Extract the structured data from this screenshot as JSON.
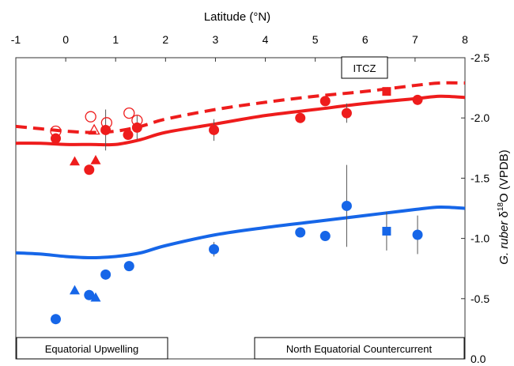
{
  "chart_data": {
    "type": "scatter",
    "xlabel": "Latitude (°N)",
    "ylabel_italic": "G. ruber",
    "ylabel_delta": " δ",
    "ylabel_sup": "18",
    "ylabel_rest": "O (VPDB)",
    "xlim": [
      -1,
      8
    ],
    "ylim": [
      -2.5,
      0.0
    ],
    "y_reversed": true,
    "x_ticks": [
      -1,
      0,
      1,
      2,
      3,
      4,
      5,
      6,
      7,
      8
    ],
    "y_ticks": [
      -2.5,
      -2.0,
      -1.5,
      -1.0,
      -0.5,
      0.0
    ],
    "x_tick_labels": [
      "-1",
      "0",
      "1",
      "2",
      "3",
      "4",
      "5",
      "6",
      "7",
      "8"
    ],
    "y_tick_labels": [
      "-2.5",
      "-2.0",
      "-1.5",
      "-1.0",
      "-0.5",
      "0.0"
    ],
    "annotations": {
      "itcz": "ITCZ",
      "upwelling": "Equatorial Upwelling",
      "countercurrent": "North Equatorial Countercurrent"
    },
    "colors": {
      "red": "#ee1c1c",
      "blue": "#1666e8"
    },
    "lines": [
      {
        "color": "red",
        "dashed": true,
        "x": [
          -1,
          -0.5,
          0,
          0.5,
          1,
          1.5,
          2,
          3,
          4,
          5,
          6,
          7,
          7.5,
          8
        ],
        "y": [
          -1.93,
          -1.91,
          -1.89,
          -1.88,
          -1.89,
          -1.93,
          -1.99,
          -2.07,
          -2.13,
          -2.18,
          -2.22,
          -2.27,
          -2.29,
          -2.29
        ]
      },
      {
        "color": "red",
        "dashed": false,
        "x": [
          -1,
          -0.5,
          0,
          0.5,
          1,
          1.5,
          2,
          3,
          4,
          5,
          6,
          7,
          7.5,
          8
        ],
        "y": [
          -1.79,
          -1.79,
          -1.78,
          -1.78,
          -1.78,
          -1.82,
          -1.88,
          -1.95,
          -2.02,
          -2.07,
          -2.12,
          -2.16,
          -2.18,
          -2.17
        ]
      },
      {
        "color": "blue",
        "dashed": false,
        "x": [
          -1,
          -0.5,
          0,
          0.5,
          1,
          1.5,
          2,
          3,
          4,
          5,
          6,
          7,
          7.5,
          8
        ],
        "y": [
          -0.88,
          -0.87,
          -0.85,
          -0.84,
          -0.85,
          -0.88,
          -0.94,
          -1.03,
          -1.09,
          -1.14,
          -1.19,
          -1.24,
          -1.26,
          -1.25
        ]
      }
    ],
    "points": [
      {
        "x": -0.2,
        "y": -1.83,
        "shape": "circle",
        "filled": true,
        "color": "red"
      },
      {
        "x": 0.47,
        "y": -1.57,
        "shape": "circle",
        "filled": true,
        "color": "red"
      },
      {
        "x": 0.8,
        "y": -1.9,
        "shape": "circle",
        "filled": true,
        "color": "red",
        "err": 0.17
      },
      {
        "x": 1.25,
        "y": -1.86,
        "shape": "circle",
        "filled": true,
        "color": "red"
      },
      {
        "x": 1.43,
        "y": -1.92,
        "shape": "circle",
        "filled": true,
        "color": "red",
        "err": 0.1
      },
      {
        "x": 2.97,
        "y": -1.9,
        "shape": "circle",
        "filled": true,
        "color": "red",
        "err": 0.09
      },
      {
        "x": 4.7,
        "y": -2.0,
        "shape": "circle",
        "filled": true,
        "color": "red"
      },
      {
        "x": 5.2,
        "y": -2.14,
        "shape": "circle",
        "filled": true,
        "color": "red"
      },
      {
        "x": 5.63,
        "y": -2.04,
        "shape": "circle",
        "filled": true,
        "color": "red",
        "err": 0.08
      },
      {
        "x": 7.05,
        "y": -2.15,
        "shape": "circle",
        "filled": true,
        "color": "red"
      },
      {
        "x": 6.43,
        "y": -2.22,
        "shape": "square",
        "filled": true,
        "color": "red"
      },
      {
        "x": 0.18,
        "y": -1.64,
        "shape": "triangle",
        "filled": true,
        "color": "red"
      },
      {
        "x": 0.6,
        "y": -1.65,
        "shape": "triangle",
        "filled": true,
        "color": "red"
      },
      {
        "x": 0.57,
        "y": -1.9,
        "shape": "triangle",
        "filled": false,
        "color": "red"
      },
      {
        "x": -0.2,
        "y": -1.89,
        "shape": "circle",
        "filled": false,
        "color": "red"
      },
      {
        "x": 0.5,
        "y": -2.01,
        "shape": "circle",
        "filled": false,
        "color": "red"
      },
      {
        "x": 0.82,
        "y": -1.96,
        "shape": "circle",
        "filled": false,
        "color": "red"
      },
      {
        "x": 1.27,
        "y": -2.04,
        "shape": "circle",
        "filled": false,
        "color": "red"
      },
      {
        "x": 1.43,
        "y": -1.98,
        "shape": "circle",
        "filled": false,
        "color": "red"
      },
      {
        "x": -0.2,
        "y": -0.33,
        "shape": "circle",
        "filled": true,
        "color": "blue"
      },
      {
        "x": 0.47,
        "y": -0.53,
        "shape": "circle",
        "filled": true,
        "color": "blue"
      },
      {
        "x": 0.8,
        "y": -0.7,
        "shape": "circle",
        "filled": true,
        "color": "blue"
      },
      {
        "x": 1.27,
        "y": -0.77,
        "shape": "circle",
        "filled": true,
        "color": "blue"
      },
      {
        "x": 2.97,
        "y": -0.91,
        "shape": "circle",
        "filled": true,
        "color": "blue",
        "err": 0.06
      },
      {
        "x": 4.7,
        "y": -1.05,
        "shape": "circle",
        "filled": true,
        "color": "blue"
      },
      {
        "x": 5.2,
        "y": -1.02,
        "shape": "circle",
        "filled": true,
        "color": "blue"
      },
      {
        "x": 5.63,
        "y": -1.27,
        "shape": "circle",
        "filled": true,
        "color": "blue",
        "err": 0.34
      },
      {
        "x": 7.05,
        "y": -1.03,
        "shape": "circle",
        "filled": true,
        "color": "blue",
        "err": 0.16
      },
      {
        "x": 6.43,
        "y": -1.06,
        "shape": "square",
        "filled": true,
        "color": "blue",
        "err": 0.16
      },
      {
        "x": 0.18,
        "y": -0.57,
        "shape": "triangle",
        "filled": true,
        "color": "blue"
      },
      {
        "x": 0.6,
        "y": -0.51,
        "shape": "triangle",
        "filled": true,
        "color": "blue"
      }
    ]
  }
}
